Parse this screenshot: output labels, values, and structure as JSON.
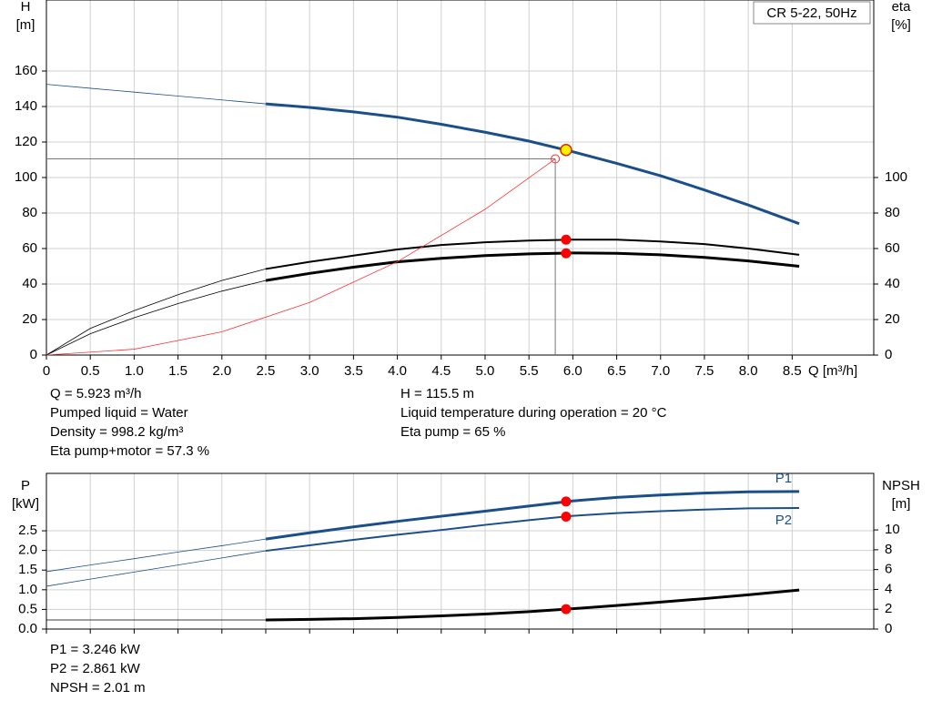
{
  "chart_data": [
    {
      "type": "line",
      "title": "CR 5-22, 50Hz",
      "y_label": [
        "H",
        "[m]"
      ],
      "y2_label": [
        "eta",
        "[%]"
      ],
      "x_label": "Q [m³/h]",
      "x": [
        0,
        0.5,
        1,
        1.5,
        2,
        2.5,
        3,
        3.5,
        4,
        4.5,
        5,
        5.5,
        6,
        6.5,
        7,
        7.5,
        8,
        8.58
      ],
      "xlim": [
        0,
        9.43
      ],
      "xticks": [
        0,
        0.5,
        {
          "value": 1,
          "label": "1.0"
        },
        1.5,
        {
          "value": 2,
          "label": "2.0"
        },
        2.5,
        {
          "value": 3,
          "label": "3.0"
        },
        3.5,
        {
          "value": 4,
          "label": "4.0"
        },
        4.5,
        {
          "value": 5,
          "label": "5.0"
        },
        5.5,
        {
          "value": 6,
          "label": "6.0"
        },
        6.5,
        {
          "value": 7,
          "label": "7.0"
        },
        7.5,
        {
          "value": 8,
          "label": "8.0"
        },
        8.5
      ],
      "ylim": [
        0,
        200
      ],
      "yticks": [
        0,
        20,
        40,
        60,
        80,
        100,
        120,
        140,
        160
      ],
      "y2lim": [
        0,
        200
      ],
      "y2ticks": [
        0,
        20,
        40,
        60,
        80,
        100
      ],
      "grid": true,
      "series": [
        {
          "color": "#1b4f8a",
          "width": 3,
          "thick_from": 2.5,
          "values": [
            152.5,
            150.3,
            148.1,
            145.9,
            143.7,
            141.5,
            139.5,
            137,
            134,
            130,
            125.5,
            120.5,
            114.5,
            108,
            101,
            93,
            84.5,
            74
          ]
        },
        {
          "color": "#000000",
          "width": 2,
          "thick_from": 2.5,
          "axis": "y2",
          "values": [
            0,
            15,
            25,
            34,
            42,
            48.5,
            52.5,
            56,
            59.5,
            62,
            63.5,
            64.5,
            65,
            65,
            64,
            62.5,
            60,
            56.5
          ]
        },
        {
          "color": "#000000",
          "width": 3,
          "thick_from": 2.5,
          "axis": "y2",
          "values": [
            0,
            12,
            21,
            29,
            36,
            42,
            46,
            49.5,
            52.5,
            54.5,
            56,
            57,
            57.5,
            57.3,
            56.5,
            55,
            53,
            50
          ]
        },
        {
          "color": "#ff3030",
          "width": 0.8,
          "x": [
            0,
            1,
            2,
            3,
            4,
            5,
            5.8
          ],
          "values": [
            0,
            3.3,
            13.1,
            29.6,
            52.6,
            82.1,
            110.5
          ]
        }
      ],
      "duty_point": {
        "x": 5.8,
        "y": 110.5
      },
      "points": [
        {
          "x": 5.923,
          "y": 115.5,
          "color": "#ffee00"
        },
        {
          "x": 5.923,
          "y": 65,
          "axis": "y2",
          "color": "#ff0000"
        },
        {
          "x": 5.923,
          "y": 57.3,
          "axis": "y2",
          "color": "#ff0000"
        }
      ]
    },
    {
      "type": "line",
      "y_label": [
        "P",
        "[kW]"
      ],
      "y2_label": [
        "NPSH",
        "[m]"
      ],
      "x": [
        0,
        0.5,
        1,
        1.5,
        2,
        2.5,
        3,
        3.5,
        4,
        4.5,
        5,
        5.5,
        6,
        6.5,
        7,
        7.5,
        8,
        8.58
      ],
      "xlim": [
        0,
        9.43
      ],
      "xticks": [
        0,
        0.5,
        1,
        1.5,
        2,
        2.5,
        3,
        3.5,
        4,
        4.5,
        5,
        5.5,
        6,
        6.5,
        7,
        7.5,
        8,
        8.5
      ],
      "ylim": [
        0,
        3.96
      ],
      "yticks": [
        {
          "value": 0,
          "label": "0.0"
        },
        0.5,
        {
          "value": 1,
          "label": "1.0"
        },
        1.5,
        {
          "value": 2,
          "label": "2.0"
        },
        2.5
      ],
      "y2lim": [
        0,
        15.7
      ],
      "y2ticks": [
        0,
        2,
        4,
        6,
        8,
        10
      ],
      "grid": true,
      "series": [
        {
          "name": "P1",
          "color": "#1b4f8a",
          "width": 3,
          "thick_from": 2.5,
          "values": [
            1.46,
            1.63,
            1.79,
            1.96,
            2.12,
            2.29,
            2.45,
            2.6,
            2.74,
            2.87,
            3.0,
            3.13,
            3.26,
            3.35,
            3.41,
            3.46,
            3.49,
            3.5
          ]
        },
        {
          "name": "P2",
          "color": "#1b4f8a",
          "width": 2,
          "thick_from": 2.5,
          "values": [
            1.09,
            1.27,
            1.45,
            1.63,
            1.81,
            1.99,
            2.13,
            2.27,
            2.4,
            2.52,
            2.65,
            2.77,
            2.88,
            2.95,
            3.0,
            3.04,
            3.07,
            3.08
          ]
        },
        {
          "color": "#000000",
          "width": 3,
          "thick_from": 2.5,
          "axis": "y2",
          "values": [
            0.92,
            0.92,
            0.92,
            0.92,
            0.92,
            0.92,
            0.97,
            1.05,
            1.17,
            1.33,
            1.52,
            1.76,
            2.05,
            2.38,
            2.72,
            3.07,
            3.45,
            3.94
          ]
        }
      ],
      "points": [
        {
          "x": 5.923,
          "y": 3.246,
          "color": "#ff0000"
        },
        {
          "x": 5.923,
          "y": 2.861,
          "color": "#ff0000"
        },
        {
          "x": 5.923,
          "y": 2.01,
          "axis": "y2",
          "color": "#ff0000"
        }
      ]
    }
  ],
  "info": {
    "top_left": [
      "Q = 5.923 m³/h",
      "Pumped liquid = Water",
      "Density = 998.2 kg/m³",
      "Eta pump+motor = 57.3 %"
    ],
    "top_right": [
      "H = 115.5 m",
      "Liquid temperature during operation = 20 °C",
      "Eta pump = 65 %"
    ],
    "bottom": [
      "P1 = 3.246 kW",
      "P2 = 2.861 kW",
      "NPSH = 2.01 m"
    ]
  }
}
